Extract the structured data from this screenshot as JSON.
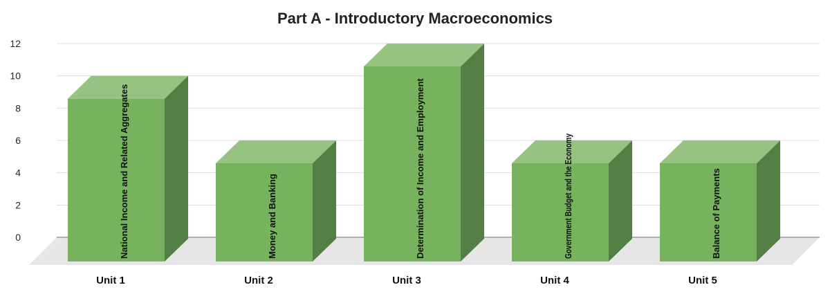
{
  "chart_data": {
    "type": "bar",
    "title": "Part A - Introductory Macroeconomics",
    "categories": [
      "Unit 1",
      "Unit 2",
      "Unit 3",
      "Unit 4",
      "Unit 5"
    ],
    "values": [
      10,
      6,
      12,
      6,
      6
    ],
    "data_labels": [
      "National Income and Related Aggregates",
      "Money and Banking",
      "Determination of Income and Employment",
      "Government Budget and the Economy",
      "Balance of Payments"
    ],
    "xlabel": "",
    "ylabel": "",
    "yticks": [
      0,
      2,
      4,
      6,
      8,
      10,
      12
    ],
    "ylim": [
      0,
      12
    ],
    "grid": true,
    "legend": "none",
    "style": "3d-column",
    "colors": {
      "bar_front": "#77b25e",
      "bar_top": "#96c381",
      "bar_side": "#547f44",
      "floor": "#e6e6e6",
      "grid": "#dcdcdc",
      "baseline": "#9a9a9a"
    }
  }
}
